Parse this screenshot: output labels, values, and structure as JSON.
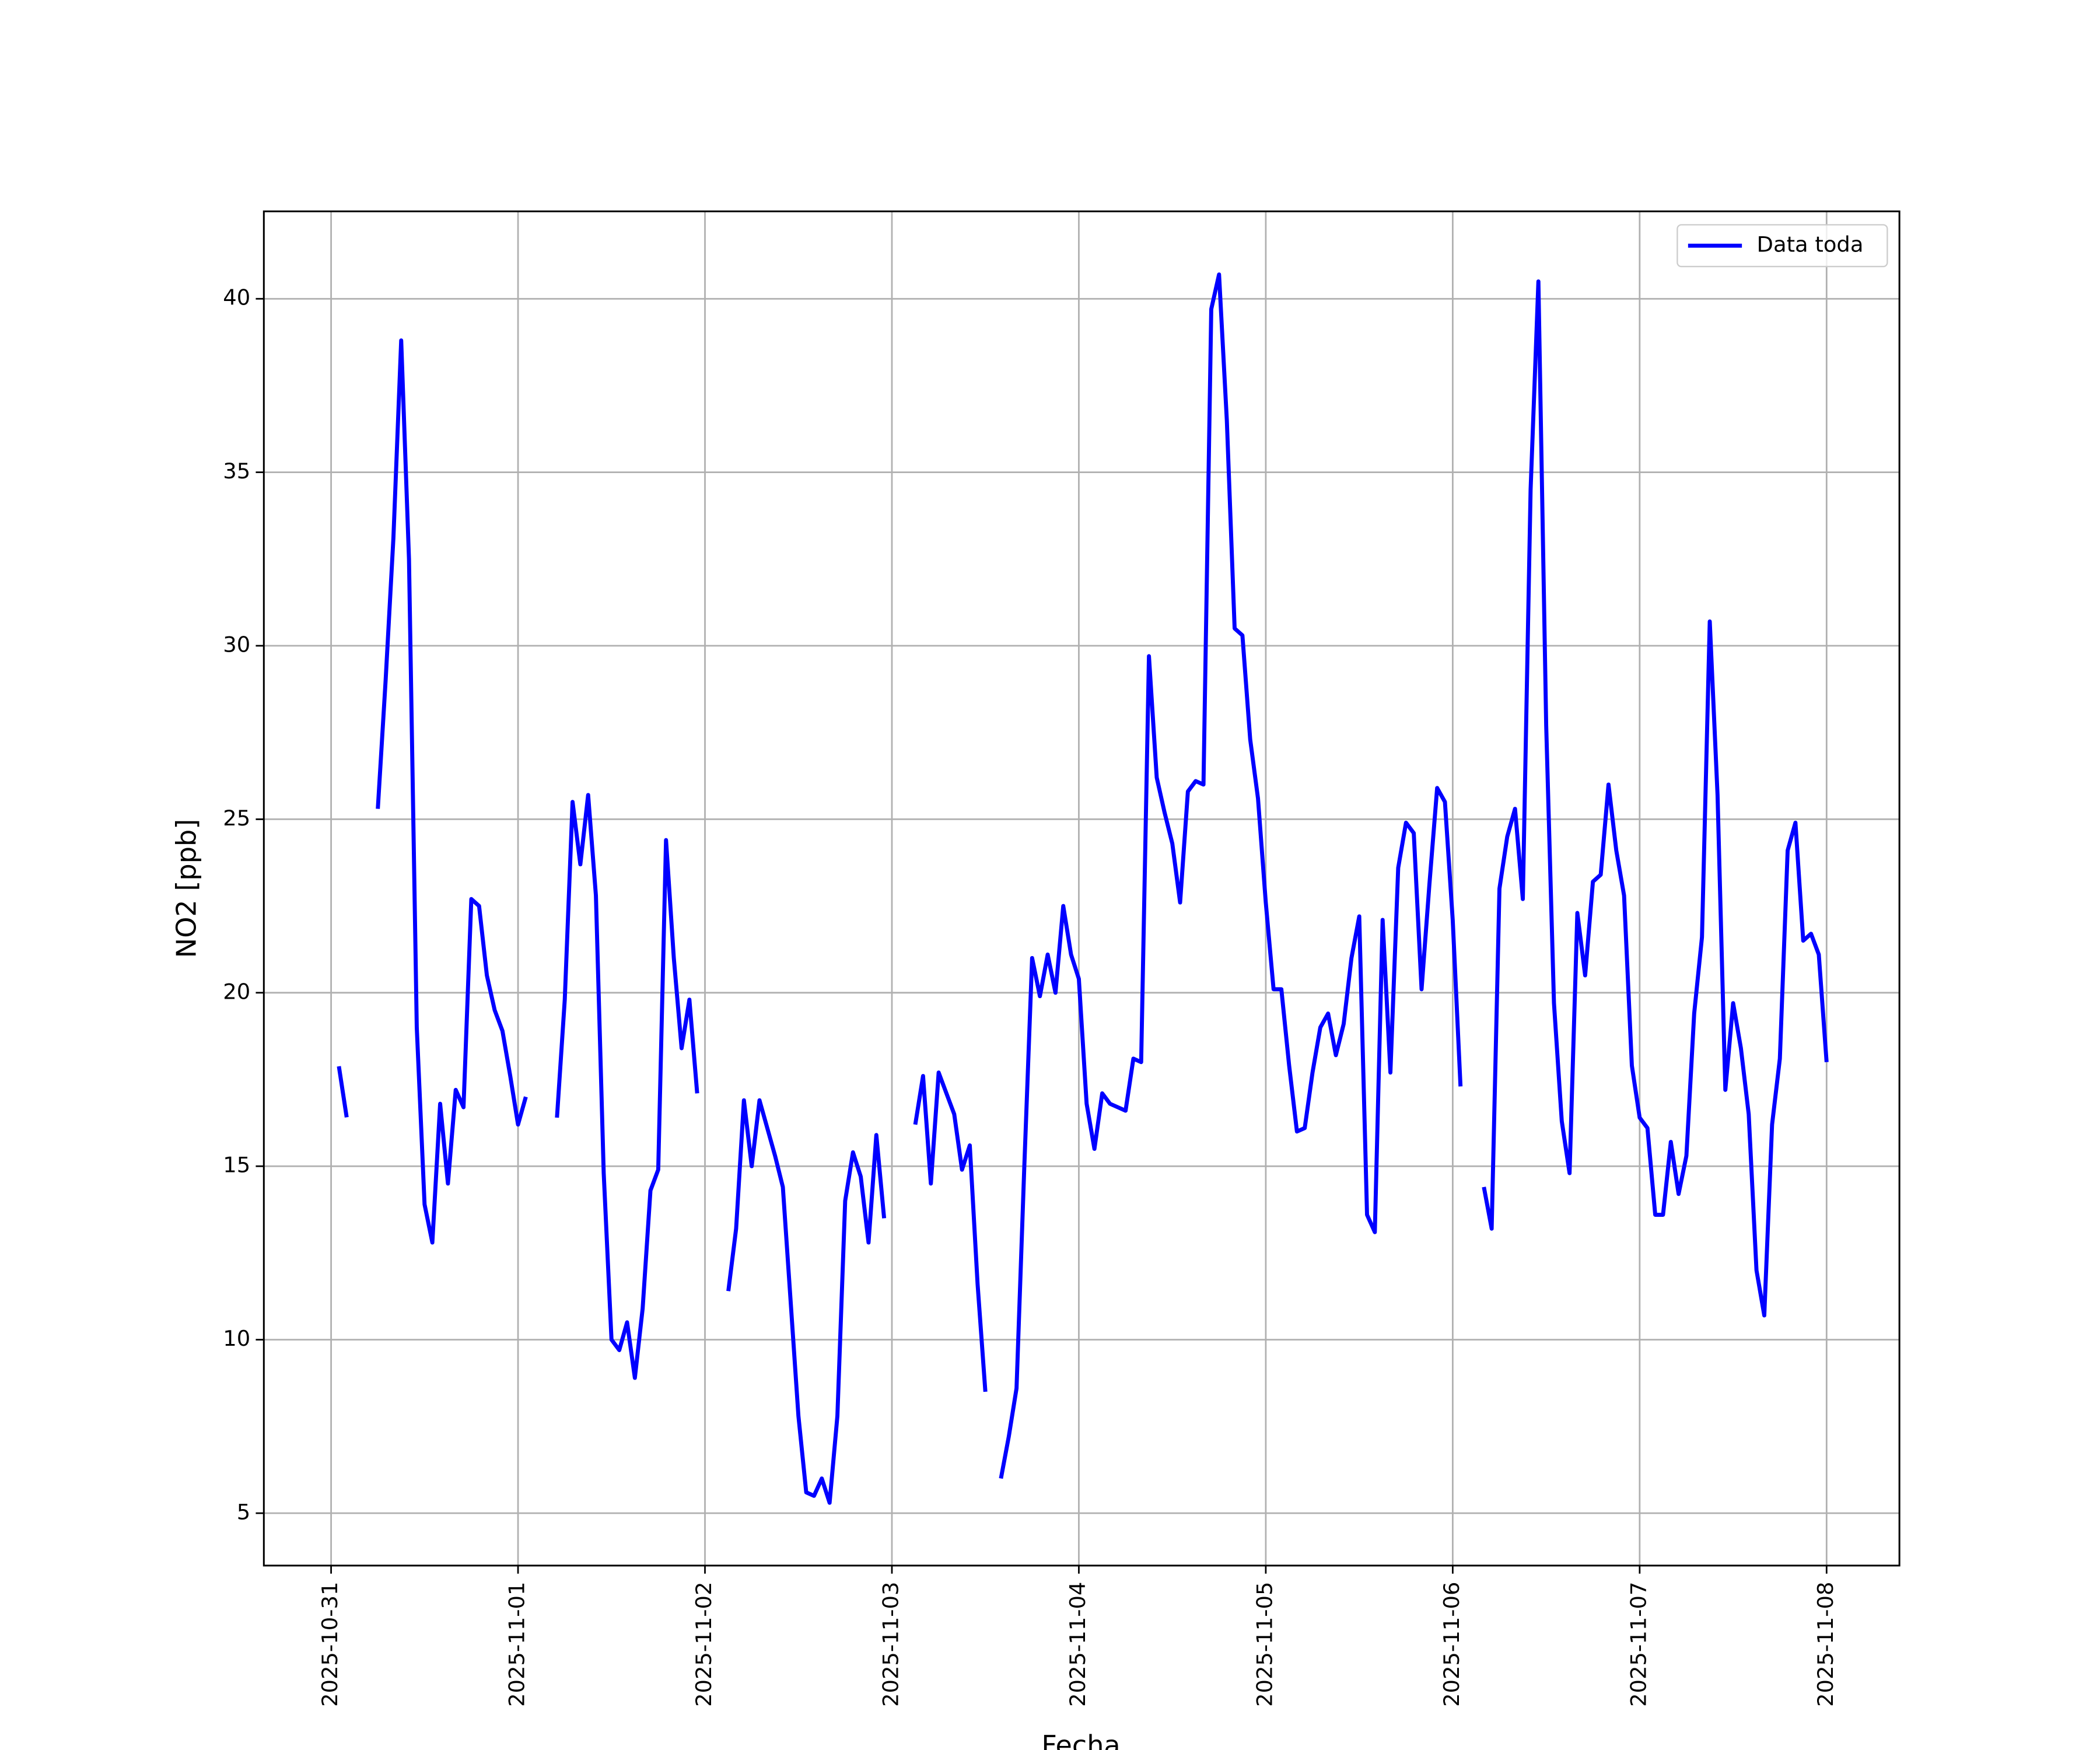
{
  "chart_data": {
    "type": "line",
    "xlabel": "Fecha",
    "ylabel": "NO2 [ppb]",
    "x": [
      "2025-10-31 01:00",
      "2025-10-31 02:00",
      "2025-10-31 03:00",
      "2025-10-31 04:00",
      "2025-10-31 05:00",
      "2025-10-31 06:00",
      "2025-10-31 07:00",
      "2025-10-31 08:00",
      "2025-10-31 09:00",
      "2025-10-31 10:00",
      "2025-10-31 11:00",
      "2025-10-31 12:00",
      "2025-10-31 13:00",
      "2025-10-31 14:00",
      "2025-10-31 15:00",
      "2025-10-31 16:00",
      "2025-10-31 17:00",
      "2025-10-31 18:00",
      "2025-10-31 19:00",
      "2025-10-31 20:00",
      "2025-10-31 21:00",
      "2025-10-31 22:00",
      "2025-10-31 23:00",
      "2025-11-01 00:00",
      "2025-11-01 01:00",
      "2025-11-01 02:00",
      "2025-11-01 03:00",
      "2025-11-01 04:00",
      "2025-11-01 05:00",
      "2025-11-01 06:00",
      "2025-11-01 07:00",
      "2025-11-01 08:00",
      "2025-11-01 09:00",
      "2025-11-01 10:00",
      "2025-11-01 11:00",
      "2025-11-01 12:00",
      "2025-11-01 13:00",
      "2025-11-01 14:00",
      "2025-11-01 15:00",
      "2025-11-01 16:00",
      "2025-11-01 17:00",
      "2025-11-01 18:00",
      "2025-11-01 19:00",
      "2025-11-01 20:00",
      "2025-11-01 21:00",
      "2025-11-01 22:00",
      "2025-11-01 23:00",
      "2025-11-02 00:00",
      "2025-11-02 01:00",
      "2025-11-02 02:00",
      "2025-11-02 03:00",
      "2025-11-02 04:00",
      "2025-11-02 05:00",
      "2025-11-02 06:00",
      "2025-11-02 07:00",
      "2025-11-02 08:00",
      "2025-11-02 09:00",
      "2025-11-02 10:00",
      "2025-11-02 11:00",
      "2025-11-02 12:00",
      "2025-11-02 13:00",
      "2025-11-02 14:00",
      "2025-11-02 15:00",
      "2025-11-02 16:00",
      "2025-11-02 17:00",
      "2025-11-02 18:00",
      "2025-11-02 19:00",
      "2025-11-02 20:00",
      "2025-11-02 21:00",
      "2025-11-02 22:00",
      "2025-11-02 23:00",
      "2025-11-03 00:00",
      "2025-11-03 01:00",
      "2025-11-03 02:00",
      "2025-11-03 03:00",
      "2025-11-03 04:00",
      "2025-11-03 05:00",
      "2025-11-03 06:00",
      "2025-11-03 07:00",
      "2025-11-03 08:00",
      "2025-11-03 09:00",
      "2025-11-03 10:00",
      "2025-11-03 11:00",
      "2025-11-03 12:00",
      "2025-11-03 13:00",
      "2025-11-03 14:00",
      "2025-11-03 15:00",
      "2025-11-03 16:00",
      "2025-11-03 17:00",
      "2025-11-03 18:00",
      "2025-11-03 19:00",
      "2025-11-03 20:00",
      "2025-11-03 21:00",
      "2025-11-03 22:00",
      "2025-11-03 23:00",
      "2025-11-04 00:00",
      "2025-11-04 01:00",
      "2025-11-04 02:00",
      "2025-11-04 03:00",
      "2025-11-04 04:00",
      "2025-11-04 05:00",
      "2025-11-04 06:00",
      "2025-11-04 07:00",
      "2025-11-04 08:00",
      "2025-11-04 09:00",
      "2025-11-04 10:00",
      "2025-11-04 11:00",
      "2025-11-04 12:00",
      "2025-11-04 13:00",
      "2025-11-04 14:00",
      "2025-11-04 15:00",
      "2025-11-04 16:00",
      "2025-11-04 17:00",
      "2025-11-04 18:00",
      "2025-11-04 19:00",
      "2025-11-04 20:00",
      "2025-11-04 21:00",
      "2025-11-04 22:00",
      "2025-11-04 23:00",
      "2025-11-05 00:00",
      "2025-11-05 01:00",
      "2025-11-05 02:00",
      "2025-11-05 03:00",
      "2025-11-05 04:00",
      "2025-11-05 05:00",
      "2025-11-05 06:00",
      "2025-11-05 07:00",
      "2025-11-05 08:00",
      "2025-11-05 09:00",
      "2025-11-05 10:00",
      "2025-11-05 11:00",
      "2025-11-05 12:00",
      "2025-11-05 13:00",
      "2025-11-05 14:00",
      "2025-11-05 15:00",
      "2025-11-05 16:00",
      "2025-11-05 17:00",
      "2025-11-05 18:00",
      "2025-11-05 19:00",
      "2025-11-05 20:00",
      "2025-11-05 21:00",
      "2025-11-05 22:00",
      "2025-11-05 23:00",
      "2025-11-06 00:00",
      "2025-11-06 01:00",
      "2025-11-06 02:00",
      "2025-11-06 03:00",
      "2025-11-06 04:00",
      "2025-11-06 05:00",
      "2025-11-06 06:00",
      "2025-11-06 07:00",
      "2025-11-06 08:00",
      "2025-11-06 09:00",
      "2025-11-06 10:00",
      "2025-11-06 11:00",
      "2025-11-06 12:00",
      "2025-11-06 13:00",
      "2025-11-06 14:00",
      "2025-11-06 15:00",
      "2025-11-06 16:00",
      "2025-11-06 17:00",
      "2025-11-06 18:00",
      "2025-11-06 19:00",
      "2025-11-06 20:00",
      "2025-11-06 21:00",
      "2025-11-06 22:00",
      "2025-11-06 23:00",
      "2025-11-07 00:00",
      "2025-11-07 01:00",
      "2025-11-07 02:00",
      "2025-11-07 03:00",
      "2025-11-07 04:00",
      "2025-11-07 05:00",
      "2025-11-07 06:00",
      "2025-11-07 07:00",
      "2025-11-07 08:00",
      "2025-11-07 09:00",
      "2025-11-07 10:00",
      "2025-11-07 11:00",
      "2025-11-07 12:00",
      "2025-11-07 13:00",
      "2025-11-07 14:00",
      "2025-11-07 15:00",
      "2025-11-07 16:00",
      "2025-11-07 17:00",
      "2025-11-07 18:00",
      "2025-11-07 19:00",
      "2025-11-07 20:00",
      "2025-11-07 21:00",
      "2025-11-07 22:00",
      "2025-11-07 23:00",
      "2025-11-08 00:00"
    ],
    "series": [
      {
        "name": "Data toda",
        "color": "#0000ff",
        "values": [
          17.88,
          16.41,
          null,
          null,
          null,
          25.3,
          29.0,
          33.1,
          38.8,
          32.5,
          19.0,
          13.9,
          12.8,
          16.8,
          14.5,
          17.2,
          16.7,
          22.7,
          22.5,
          20.5,
          19.5,
          18.9,
          17.6,
          16.2,
          17.0,
          null,
          null,
          null,
          16.4,
          19.8,
          25.5,
          23.7,
          25.7,
          22.8,
          14.8,
          10.0,
          9.7,
          10.5,
          8.9,
          10.9,
          14.3,
          14.9,
          24.4,
          21.0,
          18.4,
          19.8,
          17.1,
          null,
          null,
          null,
          11.4,
          13.2,
          16.9,
          15.0,
          16.9,
          16.1,
          15.3,
          14.4,
          11.1,
          7.8,
          5.6,
          5.5,
          6.0,
          5.3,
          7.8,
          14.0,
          15.4,
          14.7,
          12.8,
          15.9,
          13.5,
          null,
          null,
          null,
          16.2,
          17.6,
          14.5,
          17.7,
          17.1,
          16.5,
          14.9,
          15.6,
          11.6,
          8.5,
          null,
          6.0,
          7.2,
          8.6,
          15.0,
          21.0,
          19.9,
          21.1,
          20.0,
          22.5,
          21.1,
          20.4,
          16.8,
          15.5,
          17.1,
          16.8,
          16.7,
          16.6,
          18.1,
          18.0,
          29.7,
          26.2,
          25.2,
          24.3,
          22.6,
          25.8,
          26.1,
          26.0,
          39.7,
          40.7,
          36.5,
          30.5,
          30.3,
          27.3,
          25.6,
          22.6,
          20.1,
          20.1,
          17.9,
          16.0,
          16.1,
          17.7,
          19.0,
          19.4,
          18.2,
          19.1,
          21.0,
          22.2,
          13.6,
          13.1,
          22.1,
          17.7,
          23.6,
          24.9,
          24.6,
          20.1,
          23.1,
          25.9,
          25.5,
          22.1,
          17.3,
          null,
          null,
          14.4,
          13.2,
          23.0,
          24.5,
          25.3,
          22.7,
          34.5,
          40.5,
          27.7,
          19.7,
          16.3,
          14.8,
          22.3,
          20.5,
          23.2,
          23.4,
          26.0,
          24.1,
          22.8,
          17.9,
          16.4,
          16.1,
          13.6,
          13.6,
          15.7,
          14.2,
          15.3,
          19.4,
          21.6,
          30.7,
          25.7,
          17.2,
          19.7,
          18.4,
          16.5,
          12.0,
          10.7,
          16.2,
          18.1,
          24.1,
          24.9,
          21.5,
          21.7,
          21.1,
          18.0
        ]
      }
    ],
    "xlim": [
      "2025-10-30 15:22",
      "2025-11-08 09:21"
    ],
    "xticks": [
      "2025-10-31",
      "2025-11-01",
      "2025-11-02",
      "2025-11-03",
      "2025-11-04",
      "2025-11-05",
      "2025-11-06",
      "2025-11-07",
      "2025-11-08"
    ],
    "ylim": [
      3.49,
      42.52
    ],
    "yticks": [
      5,
      10,
      15,
      20,
      25,
      30,
      35,
      40
    ],
    "grid": true,
    "legend": "upper right"
  }
}
